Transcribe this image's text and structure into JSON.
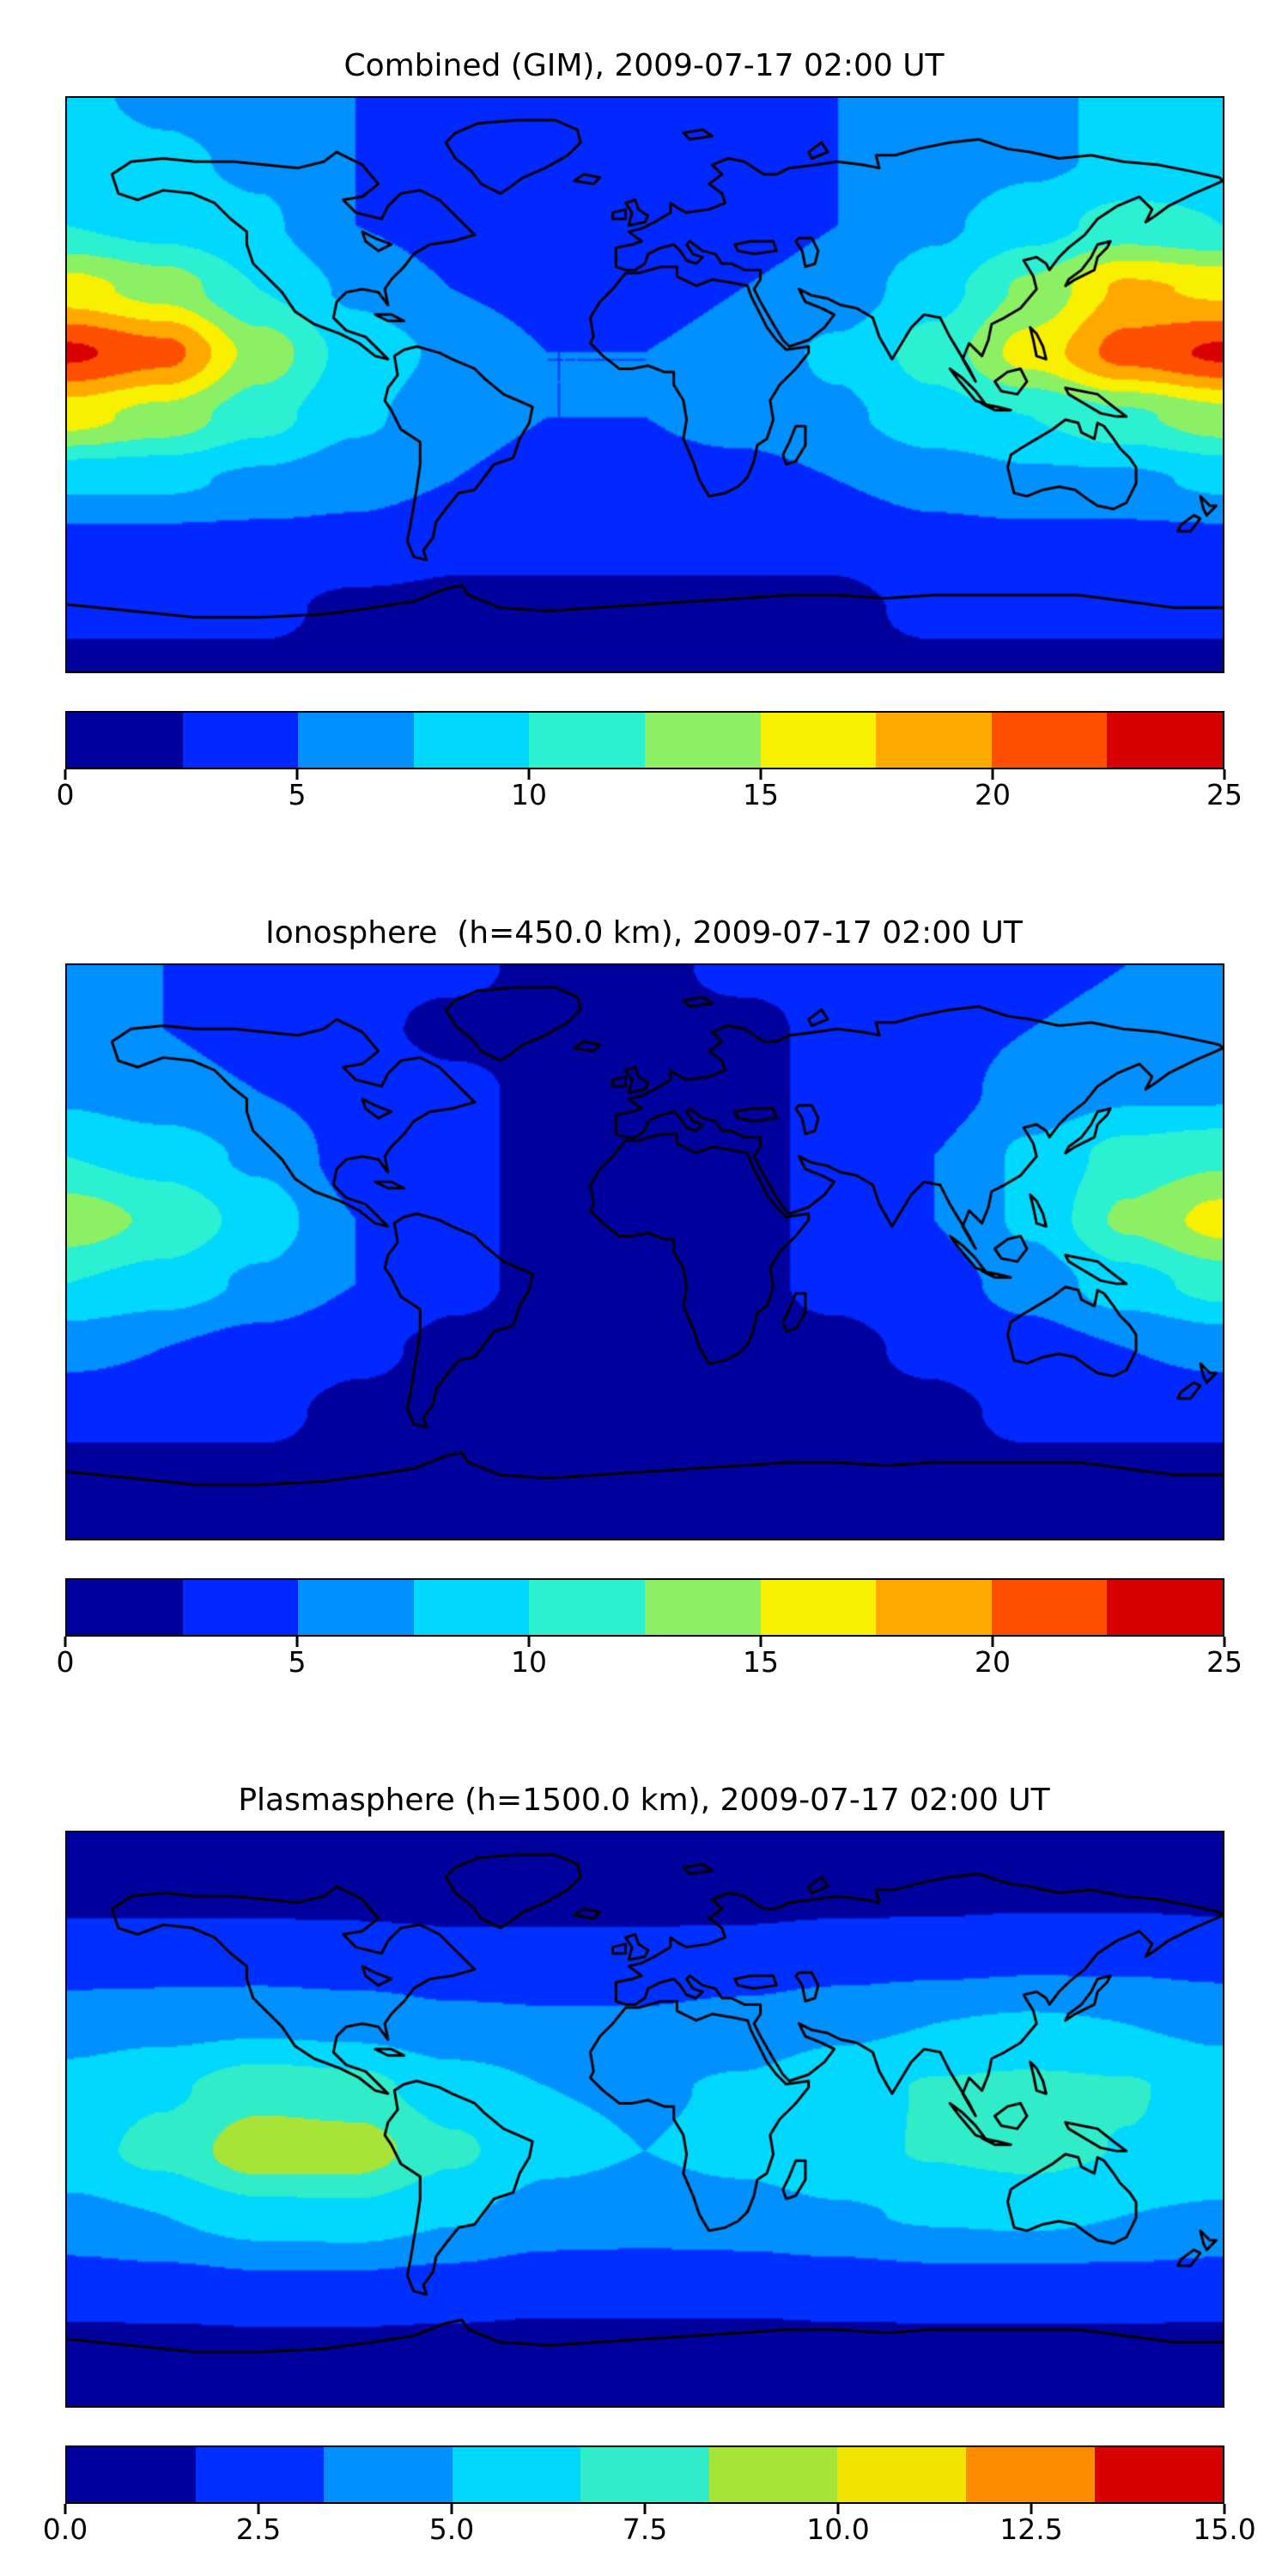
{
  "page": {
    "background": "#ffffff",
    "text_color": "#000000"
  },
  "chart_data": [
    {
      "type": "heatmap",
      "title": "Combined (GIM), 2009-07-17 02:00 UT",
      "projection": "equirectangular world map with coastlines",
      "colormap": "jet",
      "value_range": [
        0,
        25
      ],
      "n_levels": 10,
      "level_colors": [
        "#00009c",
        "#0028ff",
        "#0090ff",
        "#00d8ff",
        "#2cf0d2",
        "#8cf064",
        "#f8f000",
        "#ffa800",
        "#ff5000",
        "#d80000"
      ],
      "colorbar_ticks": [
        0,
        5,
        10,
        15,
        20,
        25
      ],
      "colorbar_tick_labels": [
        "0",
        "5",
        "10",
        "15",
        "20",
        "25"
      ],
      "colorbar_position": "bottom",
      "grid": {
        "lon": [
          -180,
          -150,
          -120,
          -90,
          -60,
          -30,
          0,
          30,
          60,
          90,
          120,
          150,
          180
        ],
        "lat": [
          90,
          70,
          50,
          30,
          10,
          -10,
          -30,
          -50,
          -70,
          -90
        ],
        "values": [
          [
            8,
            7,
            6,
            5,
            4,
            4,
            4,
            4,
            5,
            6,
            7,
            8,
            8
          ],
          [
            9,
            8,
            7,
            5,
            4,
            3,
            3,
            4,
            5,
            6,
            7,
            8,
            9
          ],
          [
            10,
            9,
            8,
            5,
            4,
            3,
            3,
            4,
            5,
            7,
            9,
            11,
            10
          ],
          [
            16,
            14,
            10,
            7,
            5,
            4,
            4,
            5,
            6,
            9,
            13,
            18,
            17
          ],
          [
            23,
            21,
            14,
            9,
            7,
            5,
            5,
            6,
            8,
            11,
            16,
            21,
            23
          ],
          [
            16,
            14,
            11,
            8,
            6,
            5,
            5,
            6,
            7,
            9,
            10,
            12,
            14
          ],
          [
            8,
            8,
            7,
            6,
            5,
            4,
            4,
            4,
            5,
            6,
            7,
            7,
            8
          ],
          [
            4,
            4,
            4,
            4,
            3,
            3,
            3,
            3,
            3,
            4,
            4,
            4,
            4
          ],
          [
            3,
            3,
            3,
            2,
            2,
            2,
            2,
            2,
            2,
            3,
            3,
            3,
            3
          ],
          [
            2,
            2,
            2,
            2,
            2,
            2,
            2,
            2,
            2,
            2,
            2,
            2,
            2
          ]
        ]
      }
    },
    {
      "type": "heatmap",
      "title": "Ionosphere  (h=450.0 km), 2009-07-17 02:00 UT",
      "projection": "equirectangular world map with coastlines",
      "colormap": "jet",
      "value_range": [
        0,
        25
      ],
      "n_levels": 10,
      "level_colors": [
        "#00009c",
        "#0028ff",
        "#0090ff",
        "#00d8ff",
        "#2cf0d2",
        "#8cf064",
        "#f8f000",
        "#ffa800",
        "#ff5000",
        "#d80000"
      ],
      "colorbar_ticks": [
        0,
        5,
        10,
        15,
        20,
        25
      ],
      "colorbar_tick_labels": [
        "0",
        "5",
        "10",
        "15",
        "20",
        "25"
      ],
      "colorbar_position": "bottom",
      "grid": {
        "lon": [
          -180,
          -150,
          -120,
          -90,
          -60,
          -30,
          0,
          30,
          60,
          90,
          120,
          150,
          180
        ],
        "lat": [
          90,
          70,
          50,
          30,
          10,
          -10,
          -30,
          -50,
          -70,
          -90
        ],
        "values": [
          [
            5,
            5,
            4,
            3,
            3,
            2,
            2,
            3,
            3,
            4,
            4,
            5,
            5
          ],
          [
            6,
            5,
            4,
            3,
            2,
            2,
            2,
            2,
            3,
            4,
            5,
            6,
            6
          ],
          [
            7,
            6,
            5,
            4,
            3,
            2,
            2,
            2,
            3,
            4,
            6,
            7,
            7
          ],
          [
            10,
            9,
            7,
            4,
            3,
            2,
            2,
            2,
            3,
            5,
            8,
            11,
            12
          ],
          [
            14,
            12,
            9,
            5,
            3,
            2,
            2,
            2,
            3,
            5,
            8,
            13,
            16
          ],
          [
            10,
            9,
            7,
            5,
            3,
            2,
            2,
            2,
            3,
            4,
            6,
            9,
            11
          ],
          [
            6,
            5,
            4,
            3,
            2,
            2,
            2,
            2,
            2,
            3,
            4,
            5,
            6
          ],
          [
            3,
            3,
            3,
            2,
            2,
            1,
            1,
            1,
            2,
            2,
            3,
            3,
            3
          ],
          [
            2,
            2,
            2,
            2,
            1,
            1,
            1,
            1,
            1,
            2,
            2,
            2,
            2
          ],
          [
            2,
            2,
            2,
            1,
            1,
            1,
            1,
            1,
            1,
            1,
            2,
            2,
            2
          ]
        ]
      }
    },
    {
      "type": "heatmap",
      "title": "Plasmasphere (h=1500.0 km), 2009-07-17 02:00 UT",
      "projection": "equirectangular world map with coastlines",
      "colormap": "jet",
      "value_range": [
        0,
        15
      ],
      "n_levels": 9,
      "level_colors": [
        "#00009c",
        "#0030ff",
        "#0090ff",
        "#00d8ff",
        "#30ecc8",
        "#a8e438",
        "#f0e400",
        "#ff8c00",
        "#d80000"
      ],
      "colorbar_ticks": [
        0,
        2.5,
        5,
        7.5,
        10,
        12.5,
        15
      ],
      "colorbar_tick_labels": [
        "0.0",
        "2.5",
        "5.0",
        "7.5",
        "10.0",
        "12.5",
        "15.0"
      ],
      "colorbar_position": "bottom",
      "grid": {
        "lon": [
          -180,
          -150,
          -120,
          -90,
          -60,
          -30,
          0,
          30,
          60,
          90,
          120,
          150,
          180
        ],
        "lat": [
          90,
          70,
          50,
          30,
          10,
          -10,
          -30,
          -50,
          -70,
          -90
        ],
        "values": [
          [
            1,
            1,
            1,
            1,
            1,
            1,
            1,
            1,
            1,
            1,
            1,
            1,
            1
          ],
          [
            1.3,
            1.3,
            1.3,
            1.3,
            1.2,
            1.2,
            1.2,
            1.2,
            1.3,
            1.3,
            1.4,
            1.4,
            1.3
          ],
          [
            2.6,
            2.6,
            2.6,
            2.4,
            2.2,
            2.2,
            2.2,
            2.3,
            2.6,
            2.8,
            3,
            3,
            2.8
          ],
          [
            4.2,
            4.4,
            4.6,
            4.4,
            3.8,
            3.6,
            3.6,
            4,
            4.6,
            5,
            5.2,
            5,
            4.6
          ],
          [
            5.6,
            6.4,
            7.6,
            7.2,
            5.8,
            5,
            4.8,
            5.2,
            6,
            6.8,
            7,
            6.8,
            6
          ],
          [
            6,
            7.2,
            9.4,
            9.2,
            7,
            5.4,
            5,
            5.4,
            6.2,
            6.8,
            7.2,
            6.6,
            6.2
          ],
          [
            4.6,
            5,
            6,
            6.2,
            5.2,
            4.4,
            4.2,
            4.4,
            4.8,
            5.2,
            5.4,
            5,
            4.8
          ],
          [
            2.8,
            3,
            3.2,
            3.2,
            3,
            2.6,
            2.6,
            2.6,
            2.8,
            3,
            3,
            3,
            2.8
          ],
          [
            1.3,
            1.3,
            1.4,
            1.4,
            1.3,
            1.2,
            1.2,
            1.2,
            1.3,
            1.3,
            1.3,
            1.3,
            1.3
          ],
          [
            1,
            1,
            1,
            1,
            1,
            1,
            1,
            1,
            1,
            1,
            1,
            1,
            1
          ]
        ]
      }
    }
  ]
}
